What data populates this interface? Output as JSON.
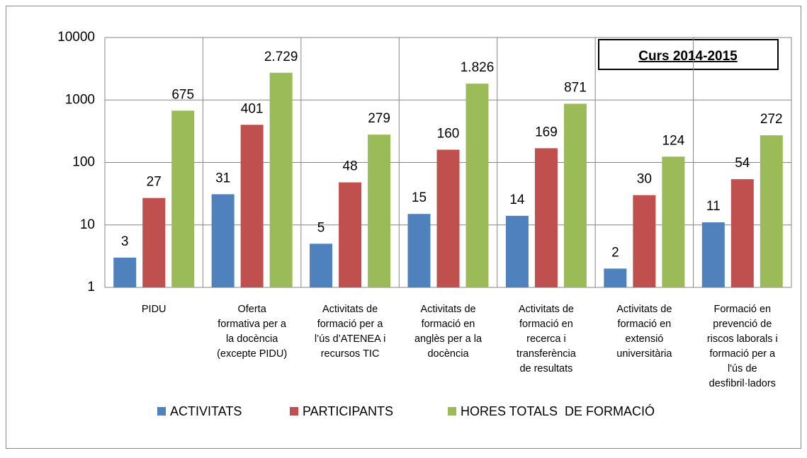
{
  "chart_data": {
    "type": "bar",
    "log": true,
    "annotation": "Curs 2014-2015",
    "categories": [
      "PIDU",
      "Oferta\nformativa per a\nla docència\n(excepte PIDU)",
      "Activitats de\nformació per a\nl’ús d’ATENEA i\nrecursos TIC",
      "Activitats de\nformació en\nanglès per a la\ndocència",
      "Activitats de\nformació en\nrecerca i\ntransferència\nde resultats",
      "Activitats de\nformació en\nextensió\nuniversitària",
      "Formació en\nprevenció de\nriscos laborals i\nformació per a\nl'ús de\ndesfibril·ladors"
    ],
    "series": [
      {
        "name": "ACTIVITATS",
        "color": "#4f81bd",
        "values": [
          3,
          31,
          5,
          15,
          14,
          2,
          11
        ]
      },
      {
        "name": "PARTICIPANTS",
        "color": "#c0504d",
        "values": [
          27,
          401,
          48,
          160,
          169,
          30,
          54
        ]
      },
      {
        "name": "HORES TOTALS  DE FORMACIÓ",
        "color": "#9bbb59",
        "values": [
          675,
          2729,
          279,
          1826,
          871,
          124,
          272
        ],
        "value_labels": [
          "675",
          "2.729",
          "279",
          "1.826",
          "871",
          "124",
          "272"
        ]
      }
    ],
    "ylim": [
      1,
      10000
    ],
    "yticks": [
      1,
      10,
      100,
      1000,
      10000
    ],
    "grid": true,
    "legend": "bottom"
  }
}
